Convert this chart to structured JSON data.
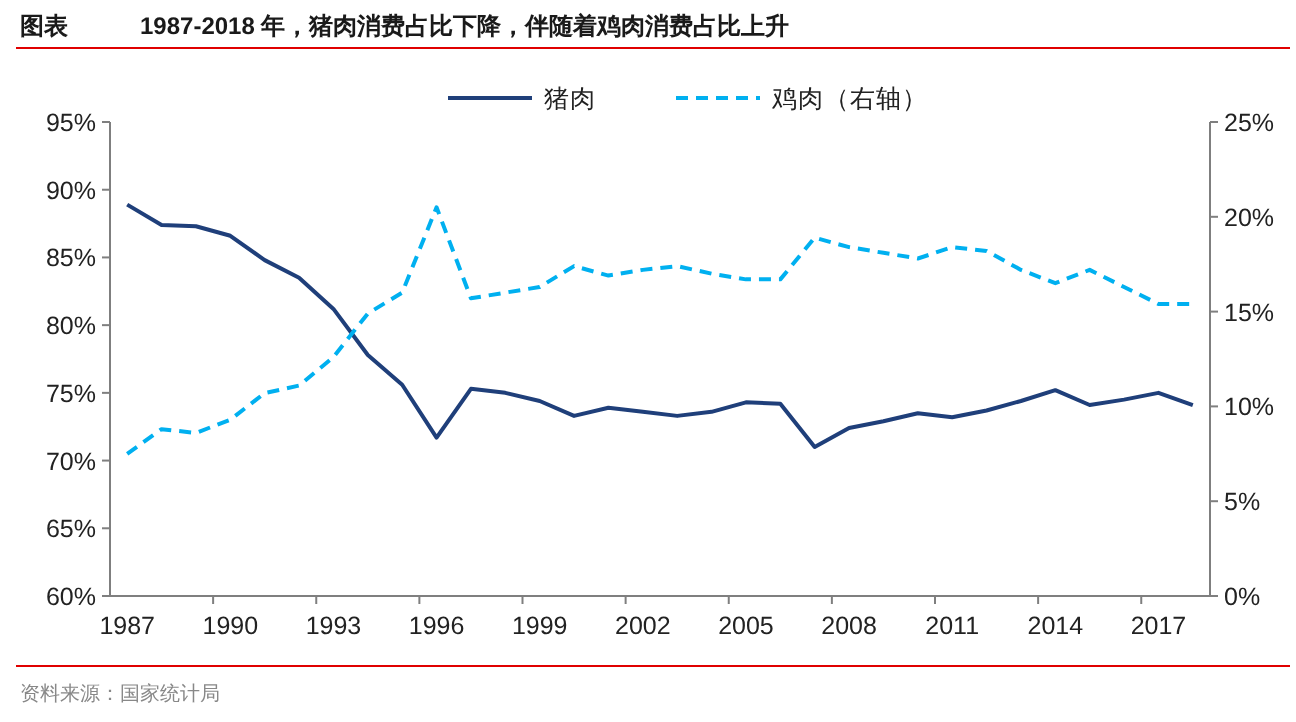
{
  "chart_data": {
    "type": "line",
    "title": "1987-2018 年，猪肉消费占比下降，伴随着鸡肉消费占比上升",
    "annotations": [
      "图表",
      "资料来源：国家统计局"
    ],
    "categories": [
      "1987",
      null,
      null,
      "1990",
      null,
      null,
      "1993",
      null,
      null,
      "1996",
      null,
      null,
      "1999",
      null,
      null,
      "2002",
      null,
      null,
      "2005",
      null,
      null,
      "2008",
      null,
      null,
      "2011",
      null,
      null,
      "2014",
      null,
      null,
      "2017",
      null
    ],
    "series": [
      {
        "name": "猪肉",
        "color": "#1f3f7a",
        "line_style": "solid",
        "values": [
          88.9,
          87.4,
          87.3,
          86.6,
          84.8,
          83.5,
          81.2,
          77.8,
          75.6,
          71.7,
          75.3,
          75.0,
          74.4,
          73.3,
          73.9,
          73.6,
          73.3,
          73.6,
          74.3,
          74.2,
          71.0,
          72.4,
          72.9,
          73.5,
          73.2,
          73.7,
          74.4,
          75.2,
          74.1,
          74.5,
          75.0,
          74.1
        ]
      },
      {
        "name": "鸡肉（右轴）",
        "color": "#00b0f0",
        "line_style": "dashed",
        "axis": "y2",
        "values": [
          7.5,
          8.8,
          8.6,
          9.3,
          10.7,
          11.1,
          12.6,
          14.9,
          16.0,
          20.5,
          15.7,
          16.0,
          16.3,
          17.4,
          16.9,
          17.2,
          17.4,
          17.0,
          16.7,
          16.7,
          18.9,
          18.4,
          18.1,
          17.8,
          18.4,
          18.2,
          17.2,
          16.5,
          17.2,
          16.3,
          15.4,
          15.4
        ]
      }
    ],
    "ylim": [
      60,
      95
    ],
    "yticks": [
      {
        "value": 60,
        "label": "60%"
      },
      {
        "value": 65,
        "label": "65%"
      },
      {
        "value": 70,
        "label": "70%"
      },
      {
        "value": 75,
        "label": "75%"
      },
      {
        "value": 80,
        "label": "80%"
      },
      {
        "value": 85,
        "label": "85%"
      },
      {
        "value": 90,
        "label": "90%"
      },
      {
        "value": 95,
        "label": "95%"
      }
    ],
    "y2lim": [
      0,
      25
    ],
    "y2ticks": [
      {
        "value": 0,
        "label": "0%"
      },
      {
        "value": 5,
        "label": "5%"
      },
      {
        "value": 10,
        "label": "10%"
      },
      {
        "value": 15,
        "label": "15%"
      },
      {
        "value": 20,
        "label": "20%"
      },
      {
        "value": 25,
        "label": "25%"
      }
    ],
    "legend": "top",
    "grid": false,
    "marker": "none"
  }
}
